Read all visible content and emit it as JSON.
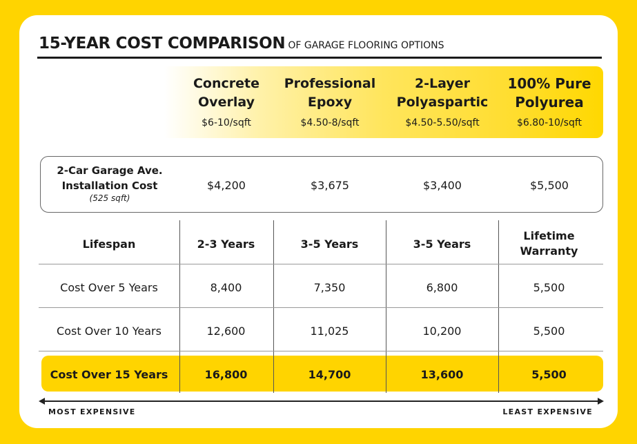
{
  "title": {
    "main": "15-YEAR COST COMPARISON",
    "sub": "OF GARAGE FLOORING OPTIONS"
  },
  "options": [
    {
      "name": "Concrete\nOverlay",
      "price": "$6-10/sqft"
    },
    {
      "name": "Professional\nEpoxy",
      "price": "$4.50-8/sqft"
    },
    {
      "name": "2-Layer\nPolyaspartic",
      "price": "$4.50-5.50/sqft"
    },
    {
      "name": "100% Pure\nPolyurea",
      "price": "$6.80-10/sqft"
    }
  ],
  "installation": {
    "label": "2-Car Garage Ave.\nInstallation Cost",
    "note": "(525 sqft)",
    "values": [
      "$4,200",
      "$3,675",
      "$3,400",
      "$5,500"
    ]
  },
  "rows": [
    {
      "label": "Lifespan",
      "values": [
        "2-3 Years",
        "3-5 Years",
        "3-5 Years",
        "Lifetime\nWarranty"
      ]
    },
    {
      "label": "Cost Over 5 Years",
      "values": [
        "8,400",
        "7,350",
        "6,800",
        "5,500"
      ]
    },
    {
      "label": "Cost Over 10 Years",
      "values": [
        "12,600",
        "11,025",
        "10,200",
        "5,500"
      ]
    },
    {
      "label": "Cost Over 15 Years",
      "values": [
        "16,800",
        "14,700",
        "13,600",
        "5,500"
      ]
    }
  ],
  "scale": {
    "left": "MOST EXPENSIVE",
    "right": "LEAST EXPENSIVE"
  },
  "colors": {
    "accent": "#FFD400",
    "text": "#1a1a1a"
  }
}
